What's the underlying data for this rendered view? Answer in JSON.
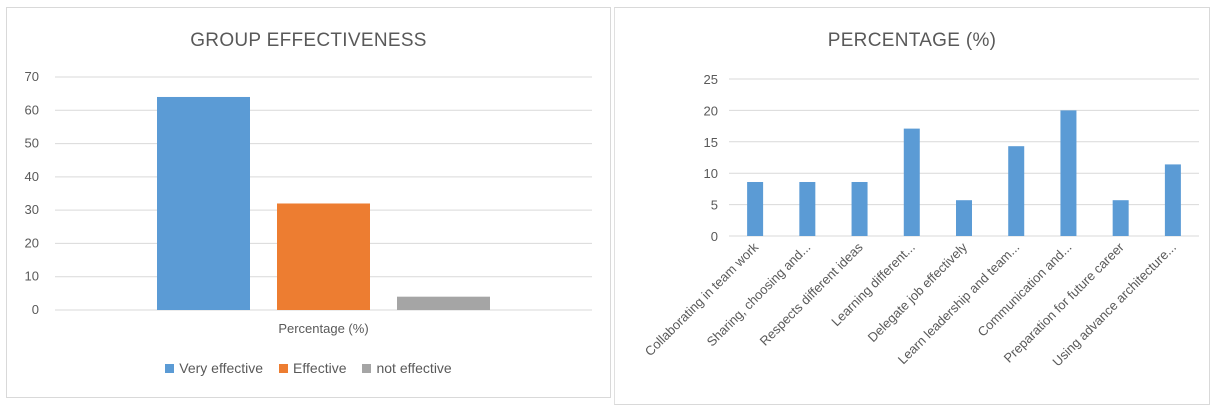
{
  "chart_data": [
    {
      "type": "bar",
      "title": "GROUP EFFECTIVENESS",
      "categories": [
        "Percentage (%)"
      ],
      "series": [
        {
          "name": "Very effective",
          "values": [
            64
          ],
          "color": "#5b9bd5"
        },
        {
          "name": "Effective",
          "values": [
            32
          ],
          "color": "#ed7d31"
        },
        {
          "name": "not effective",
          "values": [
            4
          ],
          "color": "#a5a5a5"
        }
      ],
      "ylim": [
        0,
        70
      ],
      "yticks": [
        0,
        10,
        20,
        30,
        40,
        50,
        60,
        70
      ],
      "grid": true,
      "legend": "bottom"
    },
    {
      "type": "bar",
      "title": "PERCENTAGE (%)",
      "categories": [
        "Collaborating in team work",
        "Sharing, choosing and...",
        "Respects different ideas",
        "Learning different...",
        "Delegate job effectively",
        "Learn leadership and team...",
        "Communication and...",
        "Preparation for future career",
        "Using advance architecture..."
      ],
      "values": [
        8.6,
        8.6,
        8.6,
        17.1,
        5.7,
        14.3,
        20,
        5.7,
        11.4
      ],
      "color": "#5b9bd5",
      "ylim": [
        0,
        25
      ],
      "yticks": [
        0,
        5,
        10,
        15,
        20,
        25
      ],
      "grid": true,
      "legend": "none"
    }
  ]
}
